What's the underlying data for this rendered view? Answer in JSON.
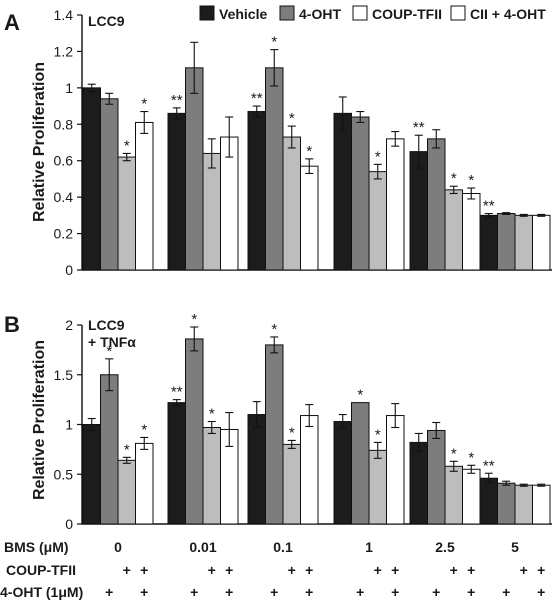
{
  "colors": {
    "Vehicle": "#1c1c1c",
    "4-OHT": "#7d7d7d",
    "COUP-TFII": "#bdbdbd",
    "CII + 4-OHT": "#ffffff"
  },
  "legend": [
    "Vehicle",
    "4-OHT",
    "COUP-TFII",
    "CII + 4-OHT"
  ],
  "legend_placement": "top",
  "x_rows": [
    {
      "label": "BMS (μM)",
      "values": [
        "0",
        "0.01",
        "0.1",
        "1",
        "2.5",
        "5"
      ]
    },
    {
      "label": "COUP-TFII",
      "per_group": [
        "",
        "",
        "+",
        "+"
      ]
    },
    {
      "label": "4-OHT (1μM)",
      "per_group": [
        "",
        "+",
        "",
        "+"
      ]
    }
  ],
  "chart_data": [
    {
      "panel": "A",
      "inset_label": [
        "LCC9"
      ],
      "type": "bar",
      "ylabel": "Relative Proliferation",
      "ylim": [
        0,
        1.4
      ],
      "yticks": [
        "0",
        "0.2",
        "0.4",
        "0.6",
        "0.8",
        "1",
        "1.2",
        "1.4"
      ],
      "categories": [
        "0",
        "0.01",
        "0.1",
        "1",
        "2.5",
        "5"
      ],
      "series": [
        {
          "name": "Vehicle",
          "values": [
            1.0,
            0.86,
            0.87,
            0.86,
            0.65,
            0.3
          ],
          "errors": [
            0.02,
            0.03,
            0.03,
            0.09,
            0.09,
            0.01
          ],
          "marks": [
            "",
            "**",
            "**",
            "",
            "**",
            "**"
          ]
        },
        {
          "name": "4-OHT",
          "values": [
            0.94,
            1.11,
            1.11,
            0.84,
            0.72,
            0.31
          ],
          "errors": [
            0.03,
            0.14,
            0.1,
            0.03,
            0.05,
            0.005
          ],
          "marks": [
            "",
            "",
            "*",
            "",
            "",
            ""
          ]
        },
        {
          "name": "COUP-TFII",
          "values": [
            0.62,
            0.64,
            0.73,
            0.54,
            0.44,
            0.3
          ],
          "errors": [
            0.02,
            0.08,
            0.06,
            0.04,
            0.02,
            0.005
          ],
          "marks": [
            "*",
            "",
            "*",
            "*",
            "*",
            ""
          ]
        },
        {
          "name": "CII + 4-OHT",
          "values": [
            0.81,
            0.73,
            0.57,
            0.72,
            0.42,
            0.3
          ],
          "errors": [
            0.06,
            0.11,
            0.04,
            0.04,
            0.03,
            0.005
          ],
          "marks": [
            "*",
            "",
            "*",
            "",
            "*",
            ""
          ]
        }
      ]
    },
    {
      "panel": "B",
      "inset_label": [
        "LCC9",
        "+ TNFα"
      ],
      "type": "bar",
      "ylabel": "Relative Proliferation",
      "ylim": [
        0,
        2
      ],
      "yticks": [
        "0",
        "0.5",
        "1",
        "1.5",
        "2"
      ],
      "categories": [
        "0",
        "0.01",
        "0.1",
        "1",
        "2.5",
        "5"
      ],
      "series": [
        {
          "name": "Vehicle",
          "values": [
            1.0,
            1.22,
            1.1,
            1.03,
            0.82,
            0.46
          ],
          "errors": [
            0.06,
            0.03,
            0.13,
            0.07,
            0.09,
            0.05
          ],
          "marks": [
            "",
            "**",
            "",
            "",
            "",
            "**"
          ]
        },
        {
          "name": "4-OHT",
          "values": [
            1.5,
            1.86,
            1.8,
            1.22,
            0.94,
            0.41
          ],
          "errors": [
            0.16,
            0.12,
            0.08,
            0.0,
            0.08,
            0.02
          ],
          "marks": [
            "*",
            "*",
            "*",
            "*",
            "",
            ""
          ]
        },
        {
          "name": "COUP-TFII",
          "values": [
            0.64,
            0.97,
            0.8,
            0.74,
            0.58,
            0.39
          ],
          "errors": [
            0.03,
            0.06,
            0.04,
            0.08,
            0.05,
            0.01
          ],
          "marks": [
            "*",
            "*",
            "*",
            "*",
            "*",
            ""
          ]
        },
        {
          "name": "CII + 4-OHT",
          "values": [
            0.81,
            0.95,
            1.09,
            1.09,
            0.55,
            0.39
          ],
          "errors": [
            0.06,
            0.17,
            0.11,
            0.12,
            0.04,
            0.01
          ],
          "marks": [
            "*",
            "",
            "",
            "",
            "*",
            ""
          ]
        }
      ]
    }
  ]
}
